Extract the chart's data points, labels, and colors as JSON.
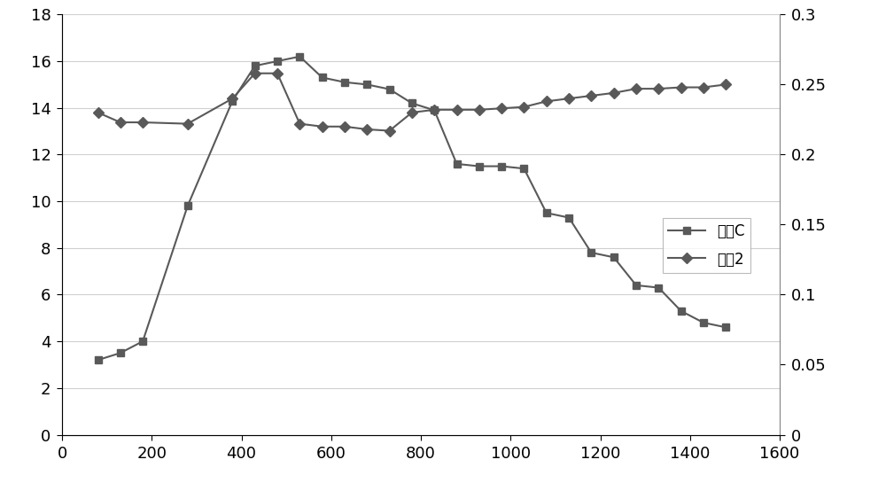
{
  "concentration_x": [
    80,
    130,
    180,
    280,
    380,
    430,
    480,
    530,
    580,
    630,
    680,
    730,
    780,
    830,
    880,
    930,
    980,
    1030,
    1080,
    1130,
    1180,
    1230,
    1280,
    1330,
    1380,
    1430,
    1480
  ],
  "concentration_y": [
    3.2,
    3.5,
    4.0,
    9.8,
    14.3,
    15.8,
    16.0,
    16.2,
    15.3,
    15.1,
    15.0,
    14.8,
    14.2,
    13.9,
    11.6,
    11.5,
    11.5,
    11.4,
    9.5,
    9.3,
    7.8,
    7.6,
    6.4,
    6.3,
    5.3,
    4.8,
    4.6
  ],
  "ratio_x": [
    80,
    130,
    180,
    280,
    380,
    430,
    480,
    530,
    580,
    630,
    680,
    730,
    780,
    830,
    880,
    930,
    980,
    1030,
    1080,
    1130,
    1180,
    1230,
    1280,
    1330,
    1380,
    1430,
    1480
  ],
  "ratio_y": [
    0.23,
    0.223,
    0.223,
    0.222,
    0.24,
    0.258,
    0.258,
    0.222,
    0.22,
    0.22,
    0.218,
    0.217,
    0.23,
    0.232,
    0.232,
    0.232,
    0.233,
    0.234,
    0.238,
    0.24,
    0.242,
    0.244,
    0.247,
    0.247,
    0.248,
    0.248,
    0.25
  ],
  "conc_color": "#595959",
  "ratio_color": "#595959",
  "conc_marker": "s",
  "ratio_marker": "D",
  "conc_label": "浓度C",
  "ratio_label": "比具2",
  "xlim": [
    0,
    1600
  ],
  "ylim_left": [
    0,
    18
  ],
  "ylim_right": [
    0,
    0.3
  ],
  "yticks_left": [
    0,
    2,
    4,
    6,
    8,
    10,
    12,
    14,
    16,
    18
  ],
  "yticks_right": [
    0,
    0.05,
    0.1,
    0.15,
    0.2,
    0.25,
    0.3
  ],
  "xticks": [
    0,
    200,
    400,
    600,
    800,
    1000,
    1200,
    1400,
    1600
  ],
  "marker_size": 6,
  "line_width": 1.5,
  "bg_color": "#ffffff",
  "grid_color": "#d0d0d0",
  "tick_fontsize": 13,
  "legend_fontsize": 12
}
